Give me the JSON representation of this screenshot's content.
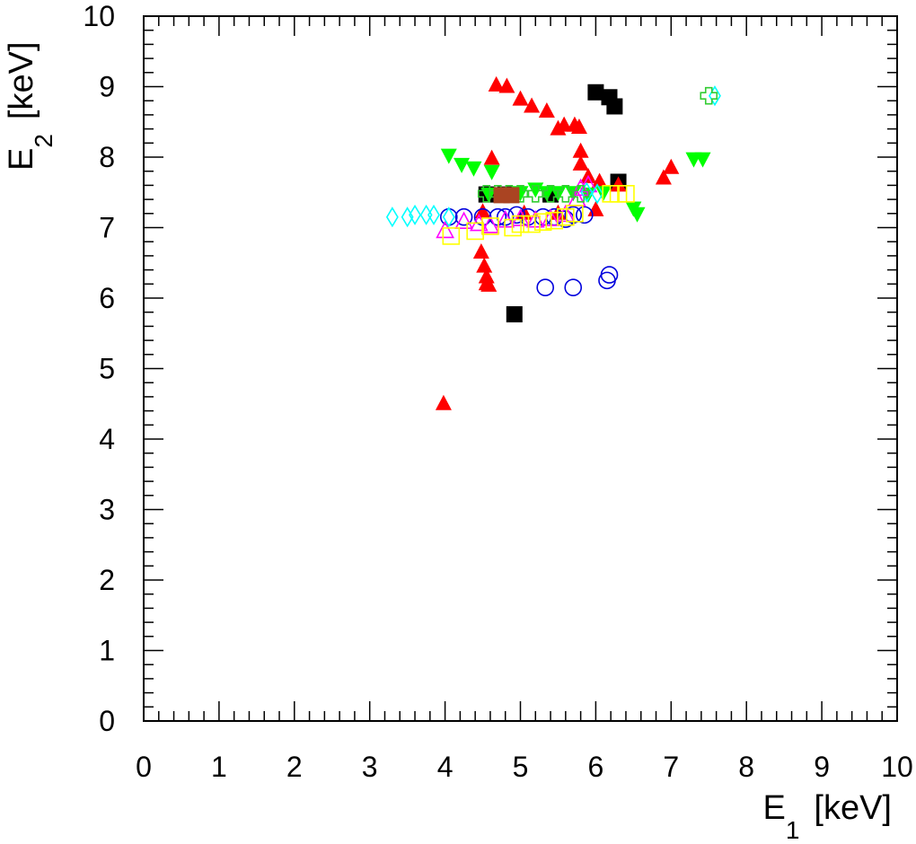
{
  "chart_data": {
    "type": "scatter",
    "xlabel_main": "E",
    "xlabel_sub": "1",
    "xlabel_unit": "[keV]",
    "ylabel_main": "E",
    "ylabel_sub": "2",
    "ylabel_unit": "[keV]",
    "xlim": [
      0,
      10
    ],
    "ylim": [
      0,
      10
    ],
    "xticks": [
      "0",
      "1",
      "2",
      "3",
      "4",
      "5",
      "6",
      "7",
      "8",
      "9",
      "10"
    ],
    "yticks": [
      "0",
      "1",
      "2",
      "3",
      "4",
      "5",
      "6",
      "7",
      "8",
      "9",
      "10"
    ],
    "grid": false,
    "series": [
      {
        "marker": "square-filled",
        "color": "#000000",
        "points": [
          [
            6.0,
            8.92
          ],
          [
            6.18,
            8.85
          ],
          [
            6.25,
            8.72
          ],
          [
            6.3,
            7.65
          ],
          [
            4.92,
            5.77
          ],
          [
            4.55,
            7.47
          ],
          [
            4.8,
            7.47
          ],
          [
            5.4,
            7.47
          ]
        ]
      },
      {
        "marker": "triangle-up-filled",
        "color": "#ff0000",
        "points": [
          [
            4.68,
            9.02
          ],
          [
            4.82,
            9.0
          ],
          [
            5.0,
            8.82
          ],
          [
            5.15,
            8.72
          ],
          [
            5.35,
            8.65
          ],
          [
            5.5,
            8.4
          ],
          [
            5.58,
            8.45
          ],
          [
            5.72,
            8.45
          ],
          [
            5.78,
            8.42
          ],
          [
            5.8,
            8.08
          ],
          [
            5.8,
            7.9
          ],
          [
            5.9,
            7.72
          ],
          [
            6.05,
            7.65
          ],
          [
            6.3,
            7.6
          ],
          [
            6.9,
            7.7
          ],
          [
            7.0,
            7.85
          ],
          [
            4.62,
            7.98
          ],
          [
            4.5,
            7.22
          ],
          [
            4.48,
            6.65
          ],
          [
            4.52,
            6.45
          ],
          [
            4.55,
            6.3
          ],
          [
            4.55,
            6.2
          ],
          [
            4.58,
            6.18
          ],
          [
            3.98,
            4.5
          ],
          [
            5.05,
            7.2
          ],
          [
            5.5,
            7.2
          ],
          [
            6.0,
            7.25
          ]
        ]
      },
      {
        "marker": "triangle-down-filled",
        "color": "#00ff00",
        "points": [
          [
            4.05,
            8.03
          ],
          [
            4.22,
            7.9
          ],
          [
            4.38,
            7.85
          ],
          [
            4.62,
            7.8
          ],
          [
            4.58,
            7.48
          ],
          [
            4.8,
            7.48
          ],
          [
            5.0,
            7.5
          ],
          [
            5.2,
            7.55
          ],
          [
            5.35,
            7.5
          ],
          [
            5.5,
            7.5
          ],
          [
            5.7,
            7.5
          ],
          [
            5.9,
            7.48
          ],
          [
            6.1,
            7.5
          ],
          [
            6.5,
            7.28
          ],
          [
            6.55,
            7.2
          ],
          [
            7.3,
            7.98
          ],
          [
            7.42,
            7.98
          ]
        ]
      },
      {
        "marker": "circle-open",
        "color": "#0000dd",
        "points": [
          [
            4.05,
            7.15
          ],
          [
            4.25,
            7.15
          ],
          [
            4.5,
            7.15
          ],
          [
            4.7,
            7.15
          ],
          [
            4.8,
            7.15
          ],
          [
            4.95,
            7.18
          ],
          [
            5.1,
            7.15
          ],
          [
            5.3,
            7.15
          ],
          [
            5.45,
            7.15
          ],
          [
            5.6,
            7.12
          ],
          [
            5.7,
            7.18
          ],
          [
            5.85,
            7.18
          ],
          [
            5.33,
            6.15
          ],
          [
            5.7,
            6.15
          ],
          [
            6.15,
            6.25
          ],
          [
            6.18,
            6.33
          ]
        ]
      },
      {
        "marker": "triangle-up-open",
        "color": "#ff00ff",
        "points": [
          [
            4.0,
            6.95
          ],
          [
            4.25,
            7.08
          ],
          [
            4.45,
            7.05
          ],
          [
            4.6,
            7.02
          ],
          [
            4.8,
            7.1
          ],
          [
            5.0,
            7.12
          ],
          [
            5.2,
            7.1
          ],
          [
            5.4,
            7.12
          ],
          [
            5.6,
            7.18
          ],
          [
            5.75,
            7.4
          ],
          [
            5.8,
            7.55
          ],
          [
            5.9,
            7.6
          ]
        ]
      },
      {
        "marker": "diamond-open",
        "color": "#00ffff",
        "points": [
          [
            3.3,
            7.15
          ],
          [
            3.5,
            7.15
          ],
          [
            3.6,
            7.18
          ],
          [
            3.75,
            7.18
          ],
          [
            3.85,
            7.18
          ],
          [
            4.05,
            7.15
          ],
          [
            5.88,
            7.5
          ],
          [
            6.02,
            7.48
          ],
          [
            7.58,
            8.87
          ]
        ]
      },
      {
        "marker": "square-open",
        "color": "#ffff00",
        "points": [
          [
            4.08,
            6.88
          ],
          [
            4.4,
            6.95
          ],
          [
            4.6,
            7.02
          ],
          [
            4.9,
            7.0
          ],
          [
            5.0,
            7.05
          ],
          [
            5.15,
            7.05
          ],
          [
            5.3,
            7.08
          ],
          [
            5.45,
            7.1
          ],
          [
            5.6,
            7.15
          ],
          [
            5.72,
            7.2
          ],
          [
            6.2,
            7.48
          ],
          [
            6.3,
            7.48
          ],
          [
            6.4,
            7.48
          ]
        ]
      },
      {
        "marker": "cross-open",
        "color": "#33cc33",
        "points": [
          [
            4.55,
            7.48
          ],
          [
            4.7,
            7.48
          ],
          [
            4.85,
            7.48
          ],
          [
            5.0,
            7.48
          ],
          [
            5.2,
            7.48
          ],
          [
            5.4,
            7.48
          ],
          [
            5.6,
            7.48
          ],
          [
            5.8,
            7.48
          ],
          [
            7.5,
            8.87
          ]
        ]
      },
      {
        "marker": "square-filled",
        "color": "#aa4422",
        "points": [
          [
            4.75,
            7.46
          ],
          [
            4.88,
            7.46
          ]
        ]
      }
    ]
  }
}
